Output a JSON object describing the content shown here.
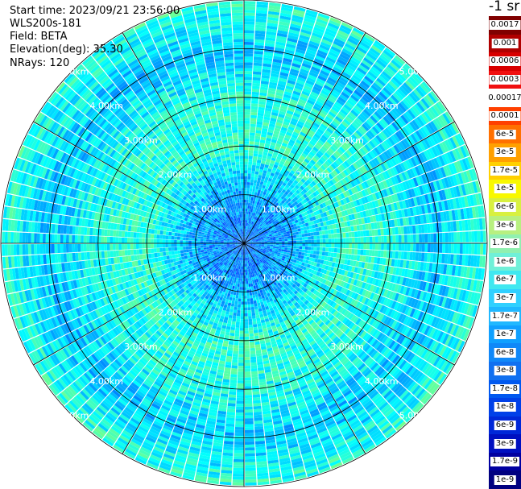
{
  "header": {
    "start_time": "Start time: 2023/09/21 23:56:00",
    "instrument": "WLS200s-181",
    "field": "Field: BETA",
    "elevation": "Elevation(deg): 35.30",
    "nrays": "NRays: 120"
  },
  "colorbar": {
    "title": "-1 sr",
    "labels": [
      "0.0017",
      "0.001",
      "0.0006",
      "0.0003",
      "0.00017",
      "0.0001",
      "6e-5",
      "3e-5",
      "1.7e-5",
      "1e-5",
      "6e-6",
      "3e-6",
      "1.7e-6",
      "1e-6",
      "6e-7",
      "3e-7",
      "1.7e-7",
      "1e-7",
      "6e-8",
      "3e-8",
      "1.7e-8",
      "1e-8",
      "6e-9",
      "3e-9",
      "1.7e-9",
      "1e-9"
    ],
    "colors": [
      "#800000",
      "#b00000",
      "#d80000",
      "#f01010",
      "#ffffff",
      "#ff4000",
      "#ff7000",
      "#ffa000",
      "#ffd000",
      "#f8f800",
      "#d8f040",
      "#b8f080",
      "#90f0b0",
      "#70f0d8",
      "#40e8f0",
      "#30d0ff",
      "#20b8ff",
      "#10a0ff",
      "#1088f8",
      "#1070f0",
      "#0058f0",
      "#0040e8",
      "#0028d8",
      "#0010c0",
      "#0000a0",
      "#000080"
    ]
  },
  "chart_data": {
    "type": "heatmap",
    "projection": "polar PPI",
    "rays": 120,
    "max_range_km": 5.0,
    "range_rings_km": [
      1.0,
      2.0,
      3.0,
      4.0,
      5.0
    ],
    "ring_labels": [
      "1.00km",
      "2.00km",
      "3.00km",
      "4.00km",
      "5.00km"
    ],
    "colormap": "jet",
    "scale": "log",
    "value_range": [
      1e-09,
      0.0017
    ],
    "radial_profile_km": [
      {
        "range_km": 0.0,
        "value": 3e-08
      },
      {
        "range_km": 1.0,
        "value": 6e-08
      },
      {
        "range_km": 2.0,
        "value": 4e-07
      },
      {
        "range_km": 3.0,
        "value": 3e-07
      },
      {
        "range_km": 4.0,
        "value": 1e-07
      },
      {
        "range_km": 5.0,
        "value": 4e-07
      }
    ]
  }
}
